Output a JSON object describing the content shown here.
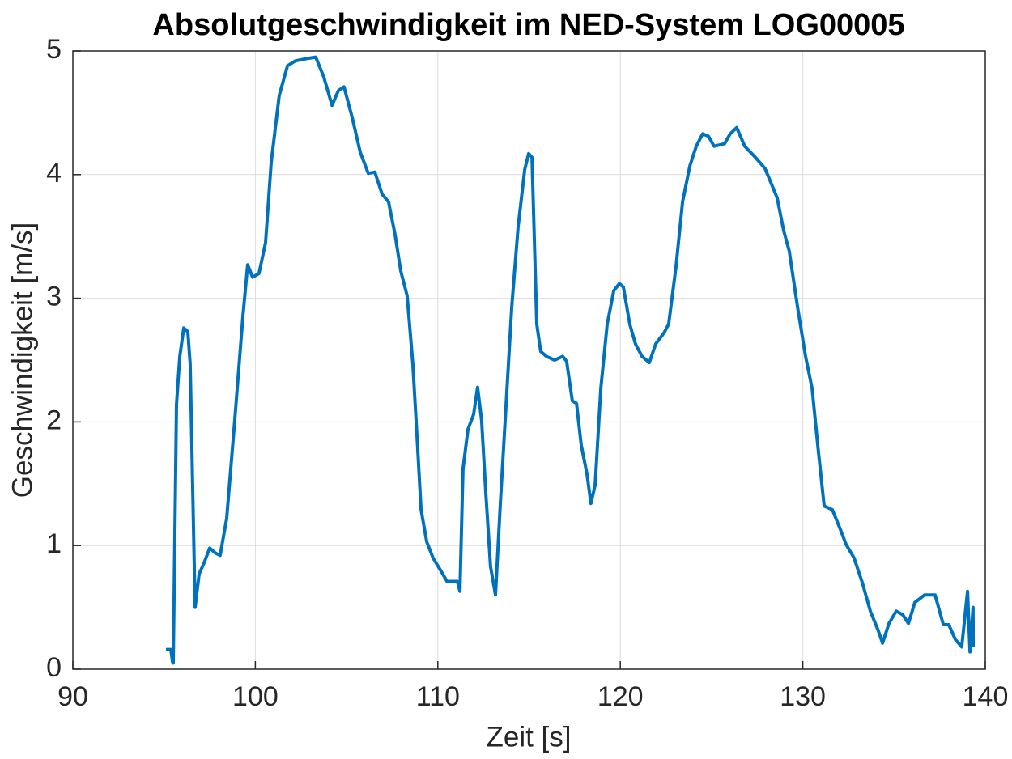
{
  "chart_data": {
    "type": "line",
    "title": "Absolutgeschwindigkeit im NED-System LOG00005",
    "xlabel": "Zeit [s]",
    "ylabel": "Geschwindigkeit [m/s]",
    "color": "#0072bd",
    "grid": true,
    "xlim": [
      90,
      140
    ],
    "ylim": [
      0,
      5
    ],
    "xticks": [
      90,
      100,
      110,
      120,
      130,
      140
    ],
    "yticks": [
      0,
      1,
      2,
      3,
      4,
      5
    ],
    "x": [
      95.1,
      95.37,
      95.46,
      95.5,
      95.68,
      95.86,
      96.08,
      96.3,
      96.43,
      96.7,
      96.92,
      97.19,
      97.5,
      97.81,
      98.07,
      98.43,
      98.87,
      99.32,
      99.58,
      99.85,
      100.2,
      100.56,
      100.87,
      101.31,
      101.76,
      102.2,
      102.87,
      103.31,
      103.75,
      104.2,
      104.55,
      104.86,
      105.31,
      105.75,
      106.19,
      106.55,
      106.95,
      107.3,
      107.66,
      107.97,
      108.32,
      108.63,
      108.86,
      109.08,
      109.39,
      109.74,
      110.19,
      110.5,
      111.07,
      111.21,
      111.38,
      111.65,
      111.96,
      112.18,
      112.4,
      112.63,
      112.89,
      113.16,
      113.43,
      113.74,
      114.05,
      114.4,
      114.76,
      114.98,
      115.16,
      115.42,
      115.64,
      115.95,
      116.4,
      116.84,
      117.06,
      117.37,
      117.6,
      117.86,
      118.17,
      118.39,
      118.62,
      118.93,
      119.28,
      119.64,
      119.95,
      120.17,
      120.52,
      120.83,
      121.19,
      121.59,
      121.94,
      122.39,
      122.65,
      123.05,
      123.41,
      123.81,
      124.16,
      124.51,
      124.83,
      125.14,
      125.71,
      126.02,
      126.38,
      126.82,
      127.4,
      127.93,
      128.24,
      128.6,
      128.95,
      129.26,
      129.71,
      130.15,
      130.51,
      130.82,
      131.17,
      131.62,
      132.06,
      132.37,
      132.81,
      133.26,
      133.7,
      134.14,
      134.37,
      134.72,
      135.12,
      135.48,
      135.79,
      136.14,
      136.67,
      137.25,
      137.7,
      138.0,
      138.36,
      138.71,
      139.03,
      139.16,
      139.33,
      139.34
    ],
    "values": [
      0.16,
      0.16,
      0.06,
      0.05,
      2.14,
      2.53,
      2.76,
      2.73,
      2.47,
      0.5,
      0.77,
      0.86,
      0.98,
      0.94,
      0.92,
      1.22,
      2.01,
      2.86,
      3.27,
      3.17,
      3.2,
      3.45,
      4.1,
      4.64,
      4.88,
      4.92,
      4.94,
      4.95,
      4.79,
      4.56,
      4.68,
      4.71,
      4.46,
      4.18,
      4.01,
      4.02,
      3.84,
      3.78,
      3.51,
      3.22,
      3.02,
      2.47,
      1.88,
      1.29,
      1.03,
      0.9,
      0.79,
      0.71,
      0.71,
      0.63,
      1.62,
      1.94,
      2.06,
      2.28,
      2.01,
      1.42,
      0.83,
      0.6,
      1.35,
      2.14,
      2.93,
      3.58,
      4.04,
      4.17,
      4.14,
      2.79,
      2.57,
      2.53,
      2.5,
      2.53,
      2.49,
      2.17,
      2.15,
      1.81,
      1.58,
      1.34,
      1.49,
      2.27,
      2.79,
      3.06,
      3.12,
      3.09,
      2.79,
      2.63,
      2.53,
      2.48,
      2.63,
      2.72,
      2.79,
      3.25,
      3.78,
      4.07,
      4.23,
      4.33,
      4.31,
      4.23,
      4.25,
      4.33,
      4.38,
      4.23,
      4.14,
      4.05,
      3.94,
      3.81,
      3.55,
      3.38,
      2.93,
      2.53,
      2.27,
      1.81,
      1.32,
      1.29,
      1.13,
      1.01,
      0.9,
      0.7,
      0.47,
      0.31,
      0.21,
      0.37,
      0.47,
      0.44,
      0.37,
      0.54,
      0.6,
      0.6,
      0.36,
      0.36,
      0.24,
      0.18,
      0.63,
      0.14,
      0.5,
      0.18
    ]
  }
}
